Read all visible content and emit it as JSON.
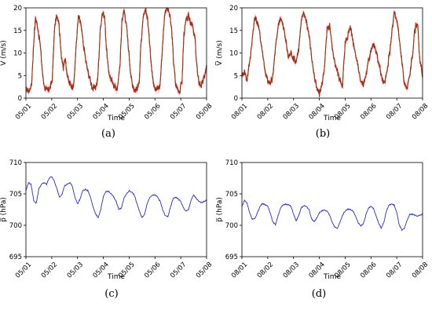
{
  "chart_data": [
    {
      "id": "a",
      "type": "line",
      "caption": "(a)",
      "xlabel": "Time",
      "ylabel": "V̅ (m/s)",
      "x_categories": [
        "05/01",
        "05/02",
        "05/03",
        "05/04",
        "05/05",
        "05/06",
        "05/07",
        "05/08"
      ],
      "xlim": [
        0,
        7
      ],
      "ylim": [
        0,
        20
      ],
      "yticks": [
        0,
        5,
        10,
        15,
        20
      ],
      "grid": false,
      "band_color": "#f7b3dc",
      "line_color": "#8b3a10",
      "noise_color": "#e02020",
      "series": [
        {
          "x": [
            0,
            0.12,
            0.22,
            0.3,
            0.37,
            0.45,
            0.55,
            0.65,
            0.72,
            0.8,
            0.88,
            0.95,
            1.02,
            1.1,
            1.18,
            1.27,
            1.36,
            1.45,
            1.52,
            1.6,
            1.7,
            1.78,
            1.86,
            1.95,
            2.03,
            2.1,
            2.18,
            2.3,
            2.4,
            2.5,
            2.6,
            2.7,
            2.78,
            2.88,
            2.96,
            3.05,
            3.12,
            3.2,
            3.3,
            3.38,
            3.45,
            3.55,
            3.65,
            3.72,
            3.8,
            3.88,
            3.96,
            4.05,
            4.12,
            4.2,
            4.3,
            4.38,
            4.45,
            4.55,
            4.65,
            4.72,
            4.8,
            4.88,
            4.96,
            5.05,
            5.12,
            5.2,
            5.3,
            5.38,
            5.45,
            5.55,
            5.65,
            5.72,
            5.8,
            5.88,
            5.96,
            6.05,
            6.12,
            6.2,
            6.3,
            6.38,
            6.45,
            6.55,
            6.65,
            6.72,
            6.8,
            6.88,
            6.96,
            7.0
          ],
          "y": [
            2,
            1.5,
            3,
            12,
            17.8,
            16,
            12,
            5,
            2.5,
            1.5,
            2,
            2.5,
            4,
            15,
            18,
            17,
            10,
            7,
            9,
            5,
            3,
            2.5,
            3,
            12,
            18,
            17,
            14,
            9,
            6,
            4,
            2,
            2.5,
            4,
            15,
            19,
            18,
            11,
            6,
            4,
            3,
            2.5,
            2,
            8,
            17,
            19.5,
            17,
            12,
            6,
            3,
            2,
            2,
            3,
            11,
            18,
            19.5,
            17,
            12,
            6,
            3,
            2,
            2,
            3,
            12,
            19,
            20,
            19,
            15,
            8,
            3,
            2,
            1.5,
            4,
            14,
            17,
            18,
            17,
            16,
            13,
            5,
            3,
            3,
            4,
            6,
            7
          ]
        }
      ]
    },
    {
      "id": "b",
      "type": "line",
      "caption": "(b)",
      "xlabel": "Time",
      "ylabel": "V̅ (m/s)",
      "x_categories": [
        "08/01",
        "08/02",
        "08/03",
        "08/04",
        "08/05",
        "08/06",
        "08/07",
        "08/08"
      ],
      "xlim": [
        0,
        7
      ],
      "ylim": [
        0,
        20
      ],
      "yticks": [
        0,
        5,
        10,
        15,
        20
      ],
      "grid": false,
      "band_color": "#f7b3dc",
      "line_color": "#8b3a10",
      "noise_color": "#e02020",
      "series": [
        {
          "x": [
            0,
            0.1,
            0.2,
            0.3,
            0.4,
            0.5,
            0.6,
            0.7,
            0.8,
            0.9,
            1.0,
            1.1,
            1.2,
            1.3,
            1.4,
            1.5,
            1.6,
            1.7,
            1.8,
            1.9,
            2.0,
            2.1,
            2.2,
            2.3,
            2.4,
            2.5,
            2.6,
            2.7,
            2.8,
            2.9,
            3.0,
            3.1,
            3.2,
            3.3,
            3.4,
            3.5,
            3.6,
            3.7,
            3.8,
            3.9,
            4.0,
            4.1,
            4.2,
            4.3,
            4.4,
            4.5,
            4.6,
            4.7,
            4.8,
            4.9,
            5.0,
            5.1,
            5.2,
            5.3,
            5.4,
            5.5,
            5.6,
            5.7,
            5.8,
            5.9,
            6.0,
            6.1,
            6.2,
            6.3,
            6.4,
            6.5,
            6.6,
            6.7,
            6.8,
            6.9,
            7.0
          ],
          "y": [
            5,
            6,
            4,
            8,
            13,
            18,
            17,
            14,
            10,
            6,
            4,
            3,
            5,
            11,
            16,
            18,
            16,
            13,
            9,
            10,
            9,
            8,
            11,
            17,
            19,
            17,
            14,
            9,
            5,
            2,
            1,
            3,
            7,
            15,
            16,
            11,
            8,
            6,
            4,
            3,
            12,
            14,
            16,
            13,
            10,
            7,
            4,
            3,
            5,
            8,
            11,
            12,
            10,
            8,
            5,
            3,
            5,
            9,
            14,
            19,
            17,
            13,
            8,
            3,
            2,
            5,
            9,
            15,
            17,
            8,
            5
          ]
        }
      ]
    },
    {
      "id": "c",
      "type": "line",
      "caption": "(c)",
      "xlabel": "Time",
      "ylabel": "p̅ (hPa)",
      "x_categories": [
        "05/01",
        "05/02",
        "05/03",
        "05/04",
        "05/05",
        "05/06",
        "05/07",
        "05/08"
      ],
      "xlim": [
        0,
        7
      ],
      "ylim": [
        695,
        710
      ],
      "yticks": [
        695,
        700,
        705,
        710
      ],
      "grid": false,
      "line_color": "#2b2bd0",
      "series": [
        {
          "x": [
            0,
            0.1,
            0.2,
            0.3,
            0.4,
            0.5,
            0.6,
            0.7,
            0.8,
            0.9,
            1.0,
            1.1,
            1.2,
            1.3,
            1.4,
            1.5,
            1.6,
            1.7,
            1.8,
            1.9,
            2.0,
            2.1,
            2.2,
            2.3,
            2.4,
            2.5,
            2.6,
            2.7,
            2.8,
            2.9,
            3.0,
            3.1,
            3.2,
            3.3,
            3.4,
            3.5,
            3.6,
            3.7,
            3.8,
            3.9,
            4.0,
            4.1,
            4.2,
            4.3,
            4.4,
            4.5,
            4.6,
            4.7,
            4.8,
            4.9,
            5.0,
            5.1,
            5.2,
            5.3,
            5.4,
            5.5,
            5.6,
            5.7,
            5.8,
            5.9,
            6.0,
            6.1,
            6.2,
            6.3,
            6.4,
            6.5,
            6.6,
            6.7,
            6.8,
            6.9,
            7.0
          ],
          "y": [
            705.5,
            706.8,
            706.5,
            704,
            703.5,
            705.8,
            706.5,
            706.8,
            706.5,
            707.5,
            707.8,
            707,
            705.8,
            704.5,
            705,
            706.3,
            706.5,
            706.8,
            706.2,
            704.5,
            703.4,
            704.2,
            705.5,
            705.7,
            705.5,
            704.5,
            703,
            701.8,
            701.2,
            702.5,
            704.5,
            705.4,
            705.4,
            705,
            704.5,
            703.8,
            702.5,
            702.8,
            704.3,
            705,
            705.5,
            705.3,
            704.8,
            703.5,
            702.2,
            701.2,
            701.8,
            703.5,
            704.5,
            704.8,
            704.8,
            704.5,
            703.8,
            702.5,
            701.5,
            701.4,
            702.8,
            704.2,
            704.5,
            704.2,
            703.8,
            702.8,
            702.2,
            702.5,
            704,
            704.8,
            704.3,
            703.8,
            703.6,
            703.8,
            704
          ]
        }
      ]
    },
    {
      "id": "d",
      "type": "line",
      "caption": "(d)",
      "xlabel": "Time",
      "ylabel": "p̅ (hPa)",
      "x_categories": [
        "08/01",
        "08/02",
        "08/03",
        "08/04",
        "08/05",
        "08/06",
        "08/07",
        "08/08"
      ],
      "xlim": [
        0,
        7
      ],
      "ylim": [
        695,
        710
      ],
      "yticks": [
        695,
        700,
        705,
        710
      ],
      "grid": false,
      "line_color": "#2b2bd0",
      "series": [
        {
          "x": [
            0,
            0.1,
            0.2,
            0.3,
            0.4,
            0.5,
            0.6,
            0.7,
            0.8,
            0.9,
            1.0,
            1.1,
            1.2,
            1.3,
            1.4,
            1.5,
            1.6,
            1.7,
            1.8,
            1.9,
            2.0,
            2.1,
            2.2,
            2.3,
            2.4,
            2.5,
            2.6,
            2.7,
            2.8,
            2.9,
            3.0,
            3.1,
            3.2,
            3.3,
            3.4,
            3.5,
            3.6,
            3.7,
            3.8,
            3.9,
            4.0,
            4.1,
            4.2,
            4.3,
            4.4,
            4.5,
            4.6,
            4.7,
            4.8,
            4.9,
            5.0,
            5.1,
            5.2,
            5.3,
            5.4,
            5.5,
            5.6,
            5.7,
            5.8,
            5.9,
            6.0,
            6.1,
            6.2,
            6.3,
            6.4,
            6.5,
            6.6,
            6.7,
            6.8,
            6.9,
            7.0
          ],
          "y": [
            703,
            704,
            703.5,
            702,
            701,
            701,
            702,
            703,
            703.5,
            703.3,
            703,
            702,
            700.5,
            700.1,
            701.5,
            702.8,
            703.2,
            703.4,
            703.3,
            703,
            701.8,
            700.7,
            701.5,
            702.8,
            703.1,
            703,
            702.5,
            701,
            700.6,
            701.2,
            702,
            702.3,
            702.4,
            702.2,
            701.6,
            700.5,
            699.7,
            699.5,
            700.5,
            701.6,
            702.3,
            702.6,
            702.5,
            702.3,
            701.5,
            700.4,
            699.9,
            700.2,
            701.6,
            702.7,
            703,
            702.7,
            701.5,
            700.3,
            699.6,
            700.5,
            702.3,
            703.2,
            703.4,
            703.2,
            702,
            700,
            699.2,
            699.5,
            700.8,
            701.7,
            701.8,
            701.6,
            701.5,
            701.6,
            701.8
          ]
        }
      ]
    }
  ]
}
